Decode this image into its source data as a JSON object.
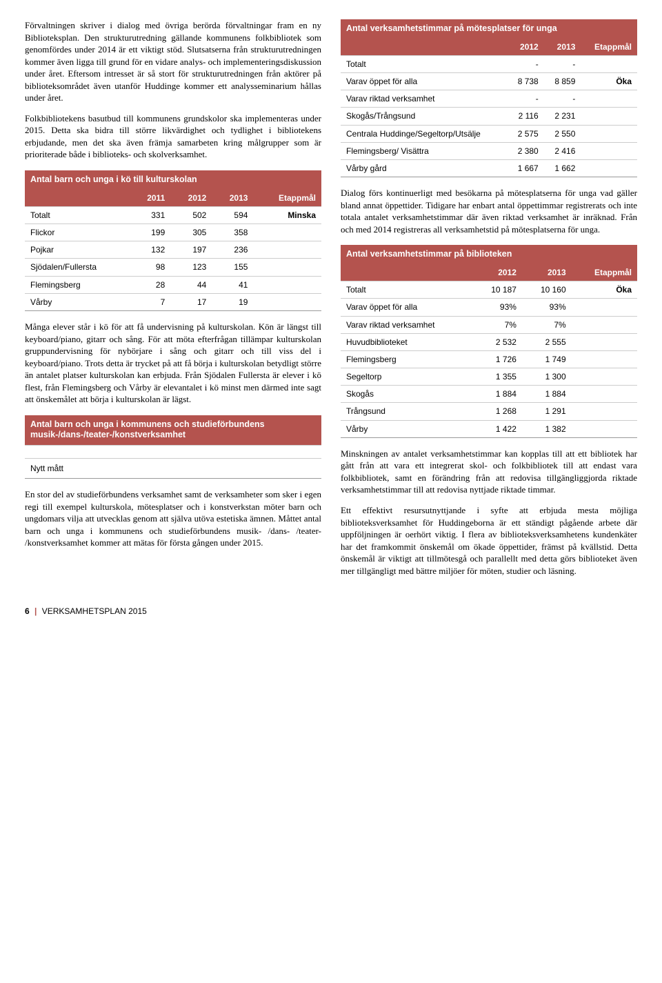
{
  "left": {
    "p1": "Förvaltningen skriver i dialog med övriga berörda förvaltningar fram en ny Biblioteksplan. Den strukturutredning gällande kommunens folkbibliotek som genomfördes under 2014 är ett viktigt stöd. Slutsatserna från strukturutredningen kommer även ligga till grund för en vidare analys- och implementeringsdiskussion under året. Eftersom intresset är så stort för strukturutredningen från aktörer på biblioteksområdet även utanför Huddinge kommer ett analysseminarium hållas under året.",
    "p2": "Folkbibliotekens basutbud till kommunens grundskolor ska implementeras under 2015. Detta ska bidra till större likvärdighet och tydlighet i bibliotekens erbjudande, men det ska även främja samarbeten kring målgrupper som är prioriterade både i biblioteks- och skolverksamhet.",
    "p3": "Många elever står i kö för att få undervisning på kulturskolan. Kön är längst till keyboard/piano, gitarr och sång. För att möta efterfrågan tillämpar kulturskolan gruppundervisning för nybörjare i sång och gitarr och till viss del i keyboard/piano. Trots detta är trycket på att få börja i kulturskolan betydligt större än antalet platser kulturskolan kan erbjuda. Från Sjödalen Fullersta är elever i kö flest, från Flemingsberg och Vårby är elevantalet i kö minst men därmed inte sagt att önskemålet att börja i kulturskolan är lägst.",
    "p4": "En stor del av studieförbundens verksamhet samt de verksamheter som sker i egen regi till exempel kulturskola, mötesplatser och i konstverkstan möter barn och ungdomars vilja att utvecklas genom att själva utöva estetiska ämnen. Måttet antal barn och unga i kommunens och studieförbundens musik- /dans- /teater- /konstverksamhet kommer att mätas för första gången under 2015."
  },
  "right": {
    "p1": "Dialog förs kontinuerligt med besökarna på mötesplatserna för unga vad gäller bland annat öppettider. Tidigare har enbart antal öppettimmar registrerats och inte totala antalet verksamhetstimmar där även riktad verksamhet är inräknad. Från och med 2014 registreras all verksamhetstid på mötesplatserna för unga.",
    "p2": "Minskningen av antalet verksamhetstimmar kan kopplas till att ett bibliotek har gått från att vara ett integrerat skol- och folkbibliotek till att endast vara folkbibliotek, samt en förändring från att redovisa tillgängliggjorda riktade verksamhetstimmar till att redovisa nyttjade riktade timmar.",
    "p3": "Ett effektivt resursutnyttjande i syfte att erbjuda mesta möjliga biblioteksverksamhet för Huddingeborna är ett ständigt pågående arbete där uppföljningen är oerhört viktig. I flera av biblioteksverksamhetens kundenkäter har det framkommit önskemål om ökade öppettider, främst på kvällstid. Detta önskemål är viktigt att tillmötesgå och parallellt med detta görs biblioteket även mer tillgängligt med bättre miljöer för möten, studier och läsning."
  },
  "table1": {
    "title": "Antal barn och unga i kö till kulturskolan",
    "cols": [
      "2011",
      "2012",
      "2013",
      "Etappmål"
    ],
    "rows": [
      {
        "label": "Totalt",
        "v": [
          "331",
          "502",
          "594",
          "Minska"
        ]
      },
      {
        "label": "Flickor",
        "v": [
          "199",
          "305",
          "358",
          ""
        ]
      },
      {
        "label": "Pojkar",
        "v": [
          "132",
          "197",
          "236",
          ""
        ]
      },
      {
        "label": "Sjödalen/Fullersta",
        "v": [
          "98",
          "123",
          "155",
          ""
        ]
      },
      {
        "label": "Flemingsberg",
        "v": [
          "28",
          "44",
          "41",
          ""
        ]
      },
      {
        "label": "Vårby",
        "v": [
          "7",
          "17",
          "19",
          ""
        ]
      }
    ]
  },
  "table2": {
    "title": "Antal barn och unga i kommunens och studieförbundens musik-/dans-/teater-/konstverksamhet",
    "note": "Nytt mått"
  },
  "table3": {
    "title": "Antal verksamhetstimmar på mötesplatser för unga",
    "cols": [
      "2012",
      "2013",
      "Etappmål"
    ],
    "rows": [
      {
        "label": "Totalt",
        "v": [
          "-",
          "-",
          ""
        ]
      },
      {
        "label": "Varav öppet för alla",
        "v": [
          "8 738",
          "8 859",
          "Öka"
        ]
      },
      {
        "label": "Varav riktad verksamhet",
        "v": [
          "-",
          "-",
          ""
        ]
      },
      {
        "label": "Skogås/Trångsund",
        "v": [
          "2 116",
          "2 231",
          ""
        ]
      },
      {
        "label": "Centrala Huddinge/Segeltorp/Utsälje",
        "v": [
          "2 575",
          "2 550",
          ""
        ]
      },
      {
        "label": "Flemingsberg/ Visättra",
        "v": [
          "2 380",
          "2 416",
          ""
        ]
      },
      {
        "label": "Vårby gård",
        "v": [
          "1 667",
          "1 662",
          ""
        ]
      }
    ]
  },
  "table4": {
    "title": "Antal verksamhetstimmar på biblioteken",
    "cols": [
      "2012",
      "2013",
      "Etappmål"
    ],
    "rows": [
      {
        "label": "Totalt",
        "v": [
          "10 187",
          "10 160",
          "Öka"
        ]
      },
      {
        "label": "Varav öppet för alla",
        "v": [
          "93%",
          "93%",
          ""
        ]
      },
      {
        "label": "Varav riktad verksamhet",
        "v": [
          "7%",
          "7%",
          ""
        ]
      },
      {
        "label": "Huvudbiblioteket",
        "v": [
          "2 532",
          "2 555",
          ""
        ]
      },
      {
        "label": "Flemingsberg",
        "v": [
          "1 726",
          "1 749",
          ""
        ]
      },
      {
        "label": "Segeltorp",
        "v": [
          "1 355",
          "1 300",
          ""
        ]
      },
      {
        "label": "Skogås",
        "v": [
          "1 884",
          "1 884",
          ""
        ]
      },
      {
        "label": "Trångsund",
        "v": [
          "1 268",
          "1 291",
          ""
        ]
      },
      {
        "label": "Vårby",
        "v": [
          "1 422",
          "1 382",
          ""
        ]
      }
    ]
  },
  "footer": {
    "pageno": "6",
    "doc": "VERKSAMHETSPLAN 2015"
  }
}
